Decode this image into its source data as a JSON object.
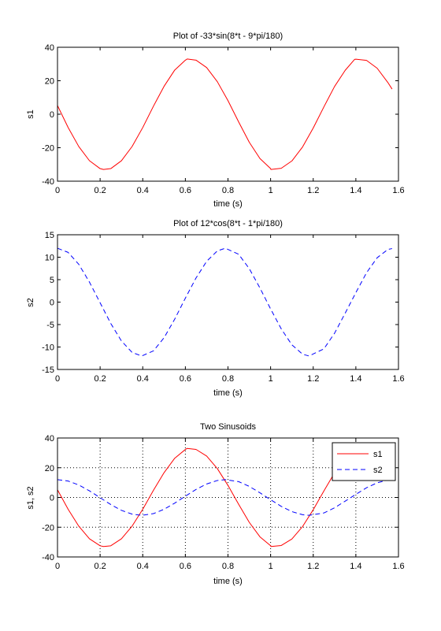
{
  "chart_data": [
    {
      "type": "line",
      "title": "Plot of -33*sin(8*t - 9*pi/180)",
      "xlabel": "time (s)",
      "ylabel": "s1",
      "xlim": [
        0,
        1.6
      ],
      "ylim": [
        -40,
        40
      ],
      "xticks": [
        0,
        0.2,
        0.4,
        0.6,
        0.8,
        1,
        1.2,
        1.4,
        1.6
      ],
      "xtick_labels": [
        "0",
        "0.2",
        "0.4",
        "0.6",
        "0.8",
        "1",
        "1.2",
        "1.4",
        "1.6"
      ],
      "yticks": [
        -40,
        -20,
        0,
        20,
        40
      ],
      "ytick_labels": [
        "-40",
        "-20",
        "0",
        "20",
        "40"
      ],
      "grid": false,
      "legend": null,
      "series": [
        {
          "color": "#ff0000",
          "dash": "solid",
          "x": [
            0,
            0.05,
            0.1,
            0.15,
            0.2,
            0.2159,
            0.25,
            0.3,
            0.35,
            0.4,
            0.45,
            0.5,
            0.55,
            0.6,
            0.6086,
            0.65,
            0.7,
            0.75,
            0.8,
            0.85,
            0.9,
            0.95,
            1.0,
            1.0013,
            1.05,
            1.1,
            1.15,
            1.2,
            1.25,
            1.3,
            1.35,
            1.394,
            1.4,
            1.45,
            1.5,
            1.55,
            1.57
          ],
          "values": [
            5.16,
            -7.95,
            -19.32,
            -27.76,
            -32.49,
            -33.0,
            -32.49,
            -27.79,
            -19.29,
            -7.97,
            4.74,
            16.67,
            26.37,
            32.28,
            33.0,
            32.32,
            27.86,
            19.44,
            8.12,
            -4.6,
            -16.76,
            -26.47,
            -32.46,
            -33.0,
            -32.3,
            -27.89,
            -19.55,
            -8.25,
            4.39,
            16.55,
            26.23,
            32.76,
            32.86,
            32.18,
            27.47,
            18.99,
            15.02
          ]
        }
      ]
    },
    {
      "type": "line",
      "title": "Plot of 12*cos(8*t - 1*pi/180)",
      "xlabel": "time (s)",
      "ylabel": "s2",
      "xlim": [
        0,
        1.6
      ],
      "ylim": [
        -15,
        15
      ],
      "xticks": [
        0,
        0.2,
        0.4,
        0.6,
        0.8,
        1,
        1.2,
        1.4,
        1.6
      ],
      "xtick_labels": [
        "0",
        "0.2",
        "0.4",
        "0.6",
        "0.8",
        "1",
        "1.2",
        "1.4",
        "1.6"
      ],
      "yticks": [
        -15,
        -10,
        -5,
        0,
        5,
        10,
        15
      ],
      "ytick_labels": [
        "-15",
        "-10",
        "-5",
        "0",
        "5",
        "10",
        "15"
      ],
      "grid": false,
      "legend": null,
      "series": [
        {
          "color": "#0000ff",
          "dash": "dashed",
          "x": [
            0,
            0.05,
            0.1,
            0.15,
            0.2,
            0.25,
            0.3,
            0.35,
            0.3949,
            0.45,
            0.5,
            0.55,
            0.6,
            0.65,
            0.7,
            0.75,
            0.7876,
            0.85,
            0.9,
            0.95,
            1.0,
            1.05,
            1.1,
            1.15,
            1.1803,
            1.25,
            1.3,
            1.35,
            1.4,
            1.45,
            1.5,
            1.55,
            1.57
          ],
          "values": [
            12.0,
            11.07,
            8.41,
            4.45,
            -0.15,
            -4.76,
            -8.65,
            -11.2,
            -12.0,
            -10.87,
            -7.94,
            -3.8,
            0.88,
            5.37,
            9.09,
            11.41,
            12.0,
            10.66,
            7.45,
            3.14,
            -1.52,
            -5.97,
            -9.52,
            -11.6,
            -12.0,
            -10.41,
            -6.94,
            -2.46,
            2.11,
            6.53,
            9.88,
            11.72,
            11.92
          ]
        }
      ]
    },
    {
      "type": "line",
      "title": "Two Sinusoids",
      "xlabel": "time (s)",
      "ylabel": "s1, s2",
      "xlim": [
        0,
        1.6
      ],
      "ylim": [
        -40,
        40
      ],
      "xticks": [
        0,
        0.2,
        0.4,
        0.6,
        0.8,
        1,
        1.2,
        1.4,
        1.6
      ],
      "xtick_labels": [
        "0",
        "0.2",
        "0.4",
        "0.6",
        "0.8",
        "1",
        "1.2",
        "1.4",
        "1.6"
      ],
      "yticks": [
        -40,
        -20,
        0,
        20,
        40
      ],
      "ytick_labels": [
        "-40",
        "-20",
        "0",
        "20",
        "40"
      ],
      "grid": true,
      "legend": "top-right",
      "series": [
        {
          "name": "s1",
          "color": "#ff0000",
          "dash": "solid",
          "x": [
            0,
            0.05,
            0.1,
            0.15,
            0.2,
            0.2159,
            0.25,
            0.3,
            0.35,
            0.4,
            0.45,
            0.5,
            0.55,
            0.6,
            0.6086,
            0.65,
            0.7,
            0.75,
            0.8,
            0.85,
            0.9,
            0.95,
            1.0,
            1.0013,
            1.05,
            1.1,
            1.15,
            1.2,
            1.25,
            1.3,
            1.35,
            1.394,
            1.4,
            1.45,
            1.5,
            1.55,
            1.57
          ],
          "values": [
            5.16,
            -7.95,
            -19.32,
            -27.76,
            -32.49,
            -33.0,
            -32.49,
            -27.79,
            -19.29,
            -7.97,
            4.74,
            16.67,
            26.37,
            32.28,
            33.0,
            32.32,
            27.86,
            19.44,
            8.12,
            -4.6,
            -16.76,
            -26.47,
            -32.46,
            -33.0,
            -32.3,
            -27.89,
            -19.55,
            -8.25,
            4.39,
            16.55,
            26.23,
            32.76,
            32.86,
            32.18,
            27.47,
            18.99,
            15.02
          ]
        },
        {
          "name": "s2",
          "color": "#0000ff",
          "dash": "dashed",
          "x": [
            0,
            0.05,
            0.1,
            0.15,
            0.2,
            0.25,
            0.3,
            0.35,
            0.3949,
            0.45,
            0.5,
            0.55,
            0.6,
            0.65,
            0.7,
            0.75,
            0.7876,
            0.85,
            0.9,
            0.95,
            1.0,
            1.05,
            1.1,
            1.15,
            1.1803,
            1.25,
            1.3,
            1.35,
            1.4,
            1.45,
            1.5,
            1.55,
            1.57
          ],
          "values": [
            12.0,
            11.07,
            8.41,
            4.45,
            -0.15,
            -4.76,
            -8.65,
            -11.2,
            -12.0,
            -10.87,
            -7.94,
            -3.8,
            0.88,
            5.37,
            9.09,
            11.41,
            12.0,
            10.66,
            7.45,
            3.14,
            -1.52,
            -5.97,
            -9.52,
            -11.6,
            -12.0,
            -10.41,
            -6.94,
            -2.46,
            2.11,
            6.53,
            9.88,
            11.72,
            11.92
          ]
        }
      ]
    }
  ]
}
